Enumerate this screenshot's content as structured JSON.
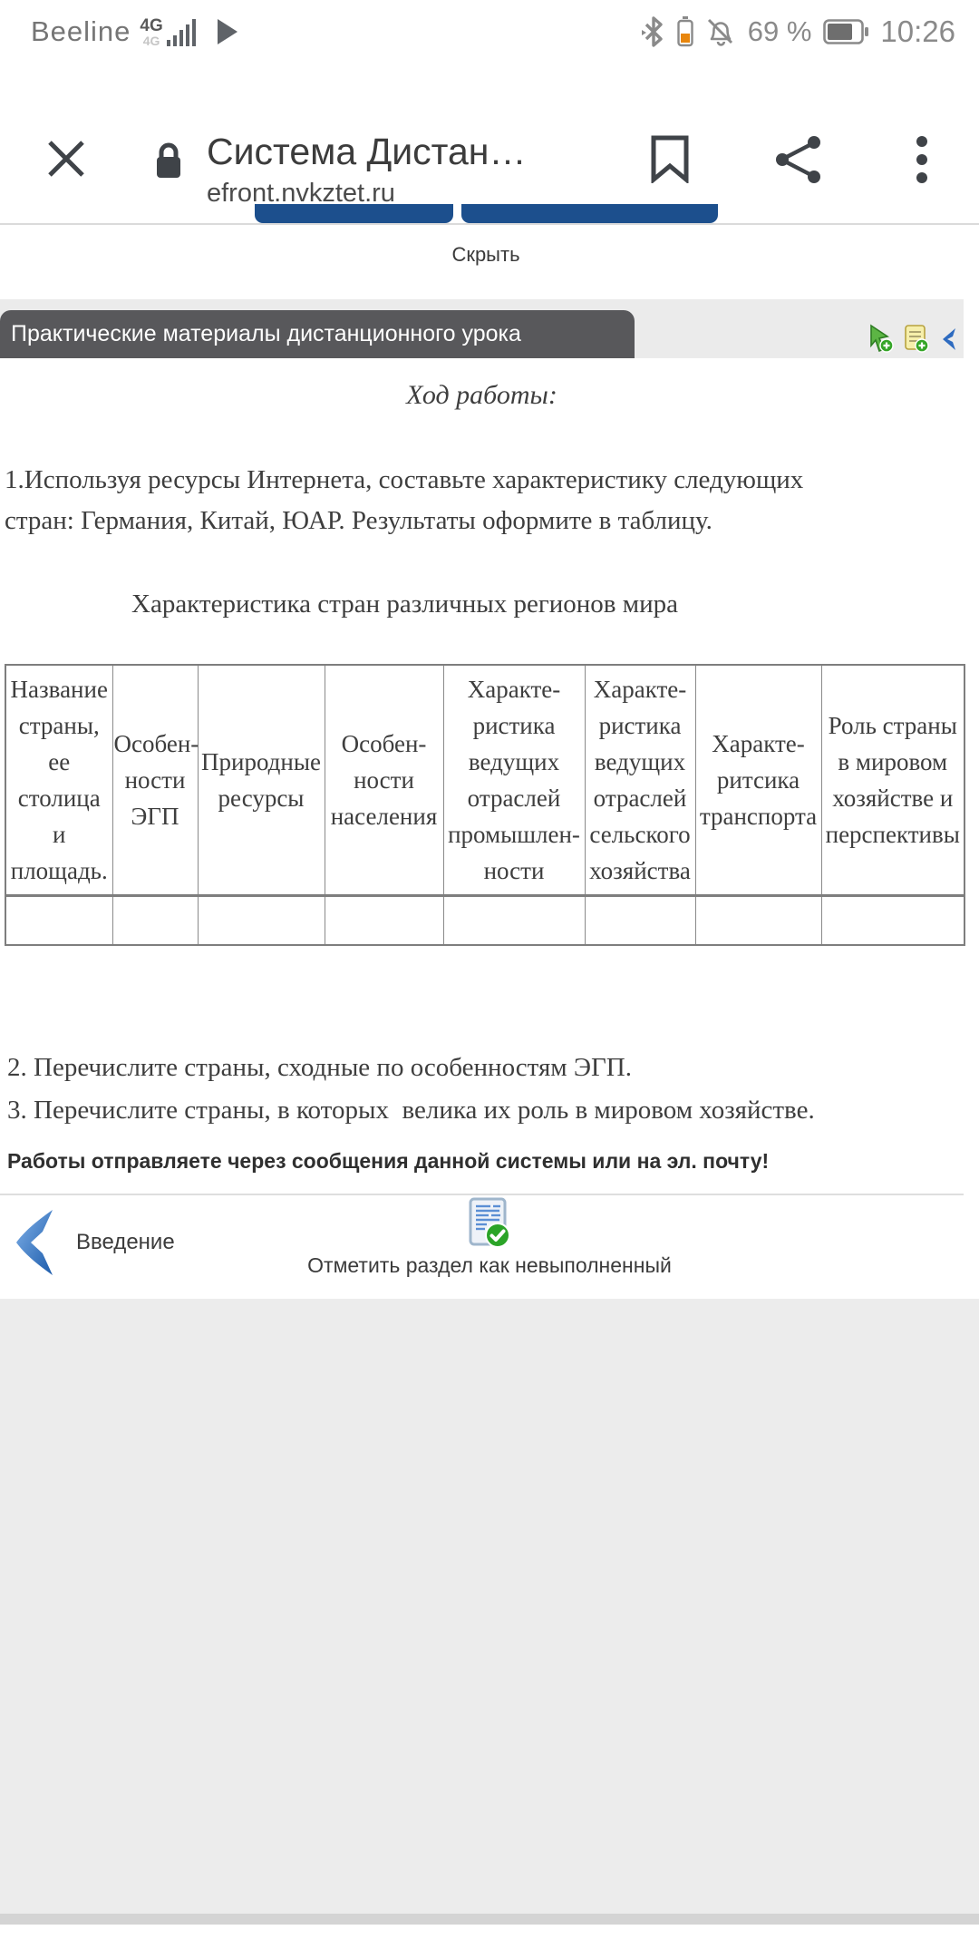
{
  "status_bar": {
    "carrier": "Beeline",
    "network_primary": "4G",
    "network_secondary": "4G",
    "battery_percent": "69 %",
    "time": "10:26"
  },
  "browser": {
    "title": "Система Дистан…",
    "url": "efront.nvkztet.ru"
  },
  "page": {
    "hide_button": "Скрыть",
    "section_tab": "Практические материалы дистанционного урока",
    "heading": "Ход работы:",
    "task1": "1.Используя ресурсы Интернета, составьте характеристику следующих стран: Германия, Китай, ЮАР. Результаты оформите в таблицу.",
    "table_caption": "Характеристика стран различных регионов мира",
    "table": {
      "headers": [
        "Название\nстраны,\nее\nстолица\nи\nплощадь.",
        "Особен-\nности\nЭГП",
        "Природные\nресурсы",
        "Особен-\nности\nнаселения",
        "Характе-\nристика\nведущих\nотраслей\nпромышлен-\nности",
        "Характе-\nристика\nведущих\nотраслей\nсельского\nхозяйства",
        "Характе-\nритсика\nтранспорта",
        "Роль страны\nв мировом\nхозяйстве и\nперспективы"
      ],
      "empty_row": [
        "",
        "",
        "",
        "",
        "",
        "",
        "",
        ""
      ]
    },
    "task2": "2. Перечислите страны, сходные по особенностям ЭГП.",
    "task3": "3. Перечислите страны, в которых  велика их роль в мировом хозяйстве.",
    "note": "Работы отправляете через сообщения данной системы или на эл. почту!",
    "nav_prev_label": "Введение",
    "mark_incomplete_label": "Отметить раздел как невыполненный"
  },
  "colors": {
    "accent_blue": "#1c4f8d",
    "tab_gray": "#58585b",
    "band_gray": "#ebebeb",
    "link_blue": "#2e6bc0",
    "battery_warn_orange": "#e8860d",
    "check_green": "#2ba428"
  }
}
